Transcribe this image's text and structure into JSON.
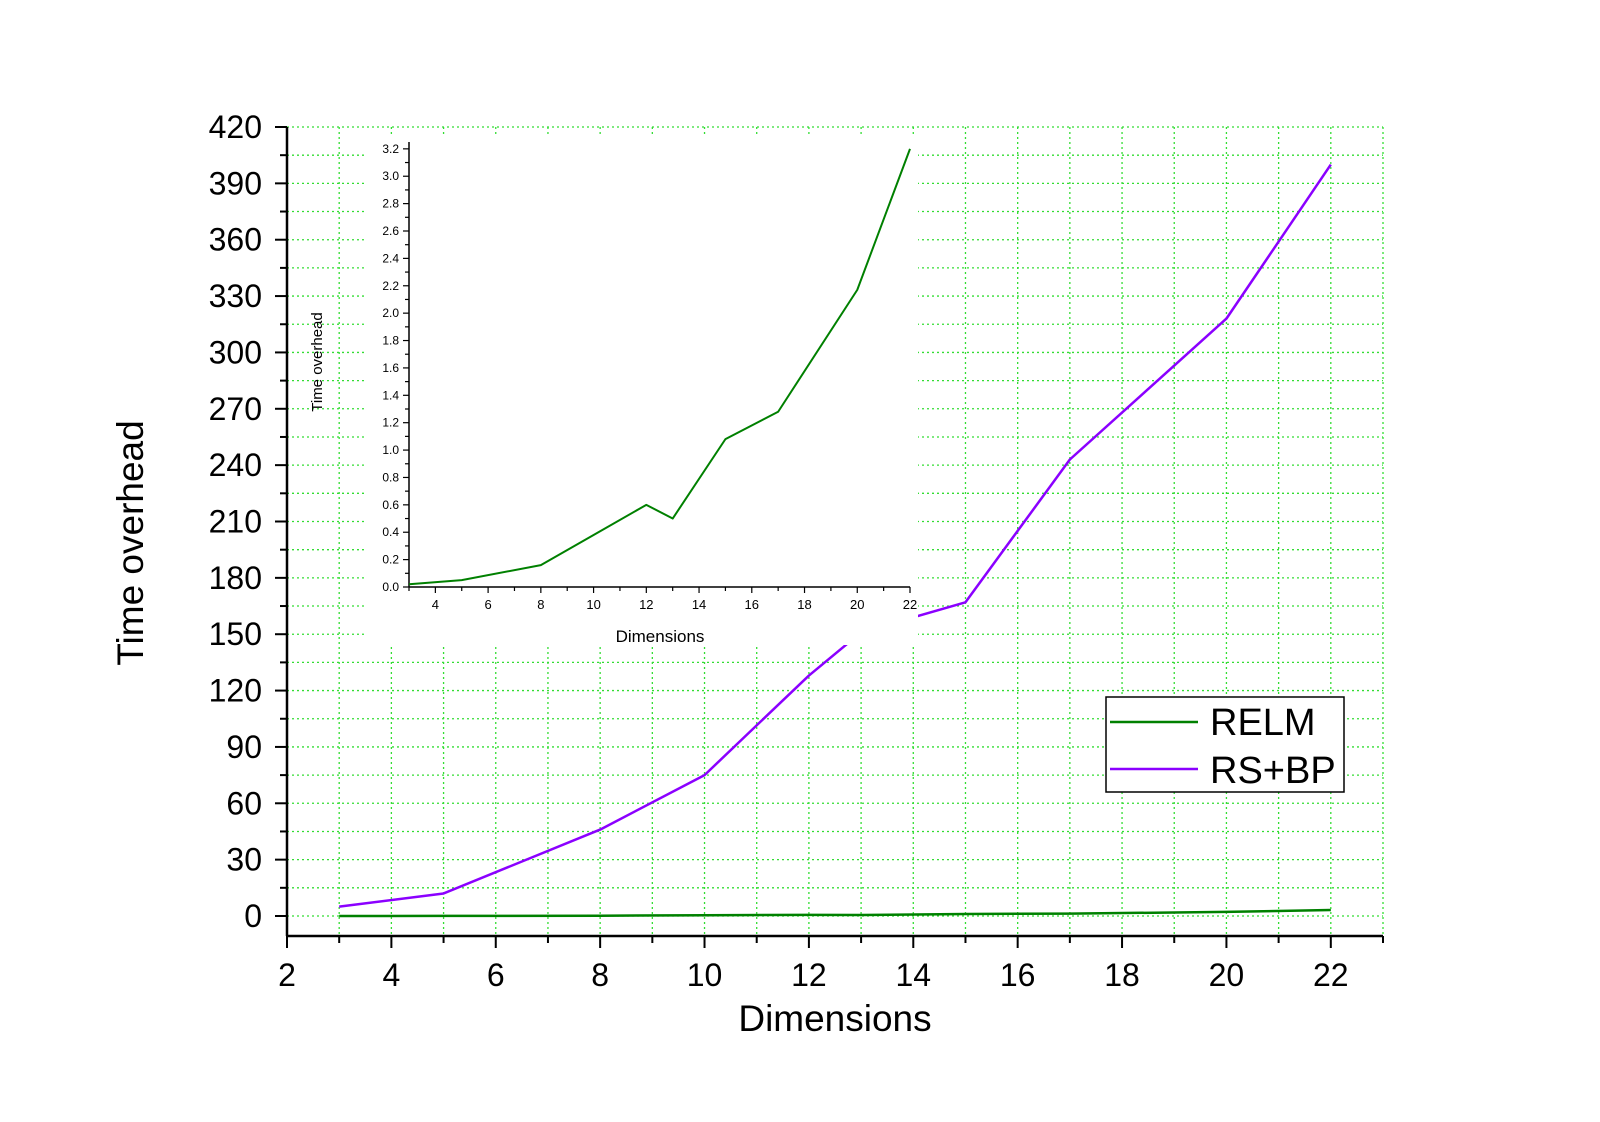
{
  "chart_data": [
    {
      "type": "line",
      "xlabel": "Dimensions",
      "ylabel": "Time overhead",
      "xlim": [
        2,
        23
      ],
      "ylim": [
        0,
        420
      ],
      "xticks": [
        2,
        4,
        6,
        8,
        10,
        12,
        14,
        16,
        18,
        20,
        22
      ],
      "yticks": [
        0,
        30,
        60,
        90,
        120,
        150,
        180,
        210,
        240,
        270,
        300,
        330,
        360,
        390,
        420
      ],
      "grid": true,
      "legend_position": "right",
      "series": [
        {
          "name": "RELM",
          "color": "#008000",
          "x": [
            3,
            5,
            8,
            10,
            12,
            13,
            15,
            17,
            20,
            22
          ],
          "values": [
            0.02,
            0.05,
            0.16,
            0.38,
            0.6,
            0.5,
            1.08,
            1.28,
            2.17,
            3.2
          ]
        },
        {
          "name": "RS+BP",
          "color": "#8B00FF",
          "x": [
            3,
            5,
            8,
            10,
            12,
            13,
            15,
            17,
            20,
            22
          ],
          "values": [
            5,
            12,
            46,
            75,
            128,
            151,
            167,
            243,
            318,
            400
          ]
        }
      ]
    },
    {
      "type": "line",
      "xlabel": "Dimensions",
      "ylabel": "Time overhead",
      "xlim": [
        3,
        22
      ],
      "ylim": [
        0,
        3.25
      ],
      "xticks": [
        4,
        6,
        8,
        10,
        12,
        14,
        16,
        18,
        20,
        22
      ],
      "yticks": [
        "0.0",
        "0.2",
        "0.4",
        "0.6",
        "0.8",
        "1.0",
        "1.2",
        "1.4",
        "1.6",
        "1.8",
        "2.0",
        "2.2",
        "2.4",
        "2.6",
        "2.8",
        "3.0",
        "3.2"
      ],
      "grid": false,
      "series": [
        {
          "color": "#008000",
          "x": [
            3,
            5,
            8,
            10,
            12,
            13,
            15,
            17,
            20,
            22
          ],
          "values": [
            0.02,
            0.05,
            0.16,
            0.38,
            0.6,
            0.5,
            1.08,
            1.28,
            2.17,
            3.2
          ]
        }
      ]
    }
  ]
}
